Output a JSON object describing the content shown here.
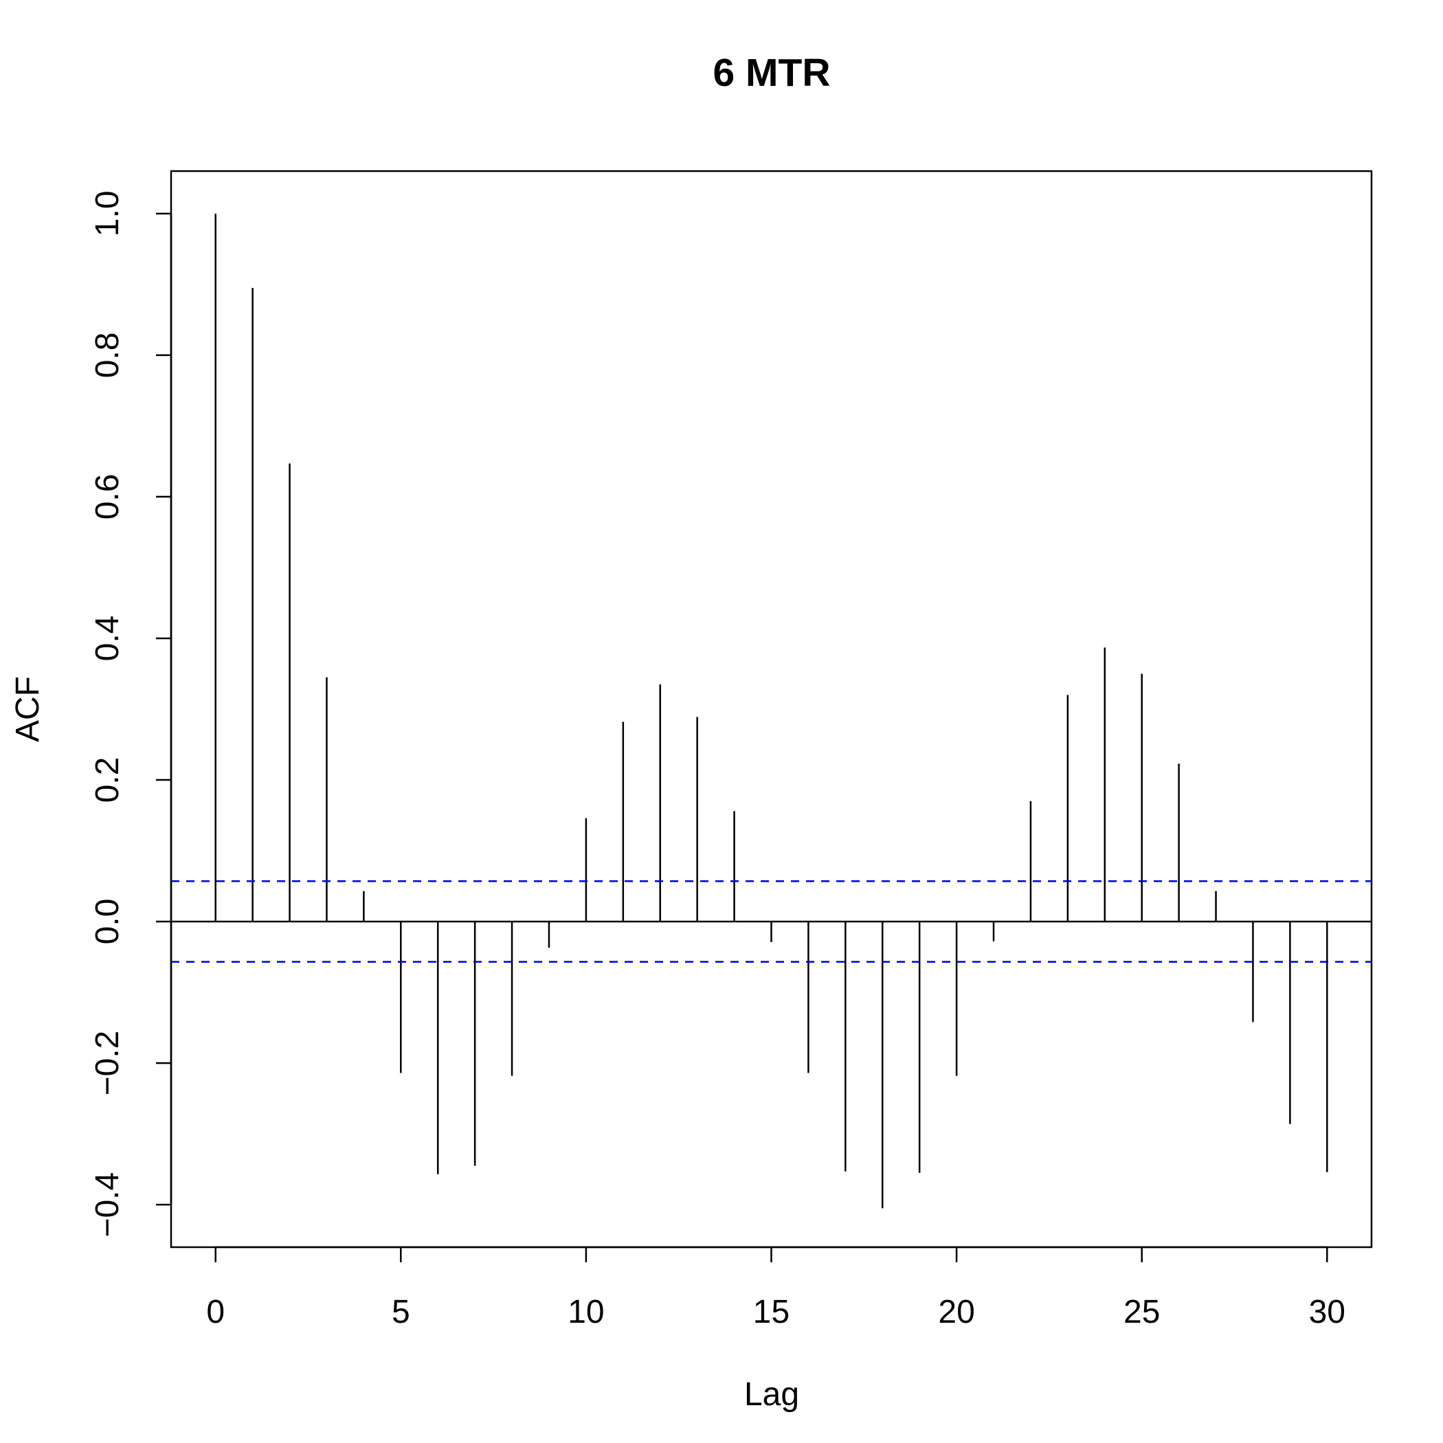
{
  "chart_data": {
    "type": "bar",
    "title": "6 MTR",
    "xlabel": "Lag",
    "ylabel": "ACF",
    "xlim": [
      -1.2,
      31.2
    ],
    "ylim": [
      -0.46,
      1.06
    ],
    "x_ticks": [
      0,
      5,
      10,
      15,
      20,
      25,
      30
    ],
    "y_ticks": [
      -0.4,
      -0.2,
      0.0,
      0.2,
      0.4,
      0.6,
      0.8,
      1.0
    ],
    "y_tick_labels": [
      "−0.4",
      "−0.2",
      "0.0",
      "0.2",
      "0.4",
      "0.6",
      "0.8",
      "1.0"
    ],
    "x_tick_labels": [
      "0",
      "5",
      "10",
      "15",
      "20",
      "25",
      "30"
    ],
    "lags": [
      0,
      1,
      2,
      3,
      4,
      5,
      6,
      7,
      8,
      9,
      10,
      11,
      12,
      13,
      14,
      15,
      16,
      17,
      18,
      19,
      20,
      21,
      22,
      23,
      24,
      25,
      26,
      27,
      28,
      29,
      30
    ],
    "acf": [
      1.0,
      0.895,
      0.647,
      0.345,
      0.043,
      -0.214,
      -0.357,
      -0.345,
      -0.218,
      -0.037,
      0.146,
      0.282,
      0.335,
      0.289,
      0.156,
      -0.029,
      -0.214,
      -0.353,
      -0.405,
      -0.355,
      -0.218,
      -0.028,
      0.17,
      0.32,
      0.387,
      0.35,
      0.223,
      0.043,
      -0.142,
      -0.286,
      -0.354
    ],
    "confidence_bound": 0.057,
    "grid": false,
    "colors": {
      "bars": "#000000",
      "confidence_lines": "#0000cd",
      "axes": "#000000"
    }
  }
}
